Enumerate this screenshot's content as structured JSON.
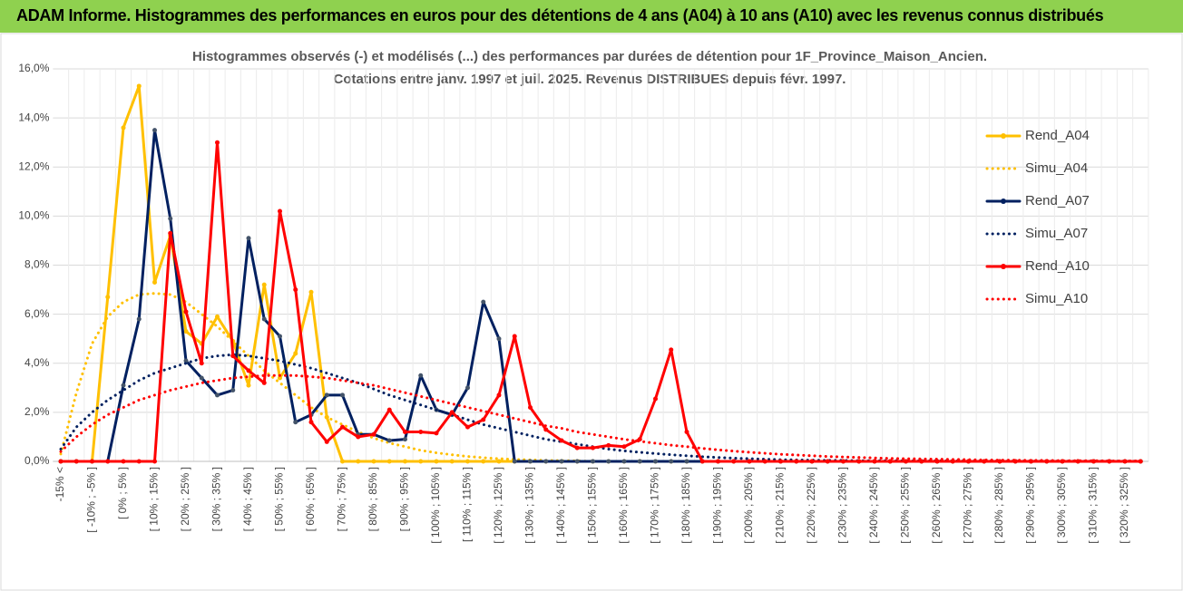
{
  "header": {
    "title": "ADAM Informe. Histogrammes des performances en euros pour des détentions de 4 ans (A04) à 10 ans (A10) avec les revenus connus distribués"
  },
  "chart_data": {
    "type": "line",
    "title": "Histogrammes observés (-) et modélisés (...) des performances par durées de détention pour 1F_Province_Maison_Ancien.",
    "subtitle": "Cotations entre janv. 1997 et juil. 2025. Revenus DISTRIBUES depuis févr. 1997.",
    "categories": [
      "-15% <",
      null,
      "[ -10% ; -5% ]",
      null,
      "[ 0% ; 5% ]",
      null,
      "[ 10% ; 15% ]",
      null,
      "[ 20% ; 25% ]",
      null,
      "[ 30% ; 35% ]",
      null,
      "[ 40% ; 45% ]",
      null,
      "[ 50% ; 55% ]",
      null,
      "[ 60% ; 65% ]",
      null,
      "[ 70% ; 75% ]",
      null,
      "[ 80% ; 85% ]",
      null,
      "[ 90% ; 95% ]",
      null,
      "[ 100% ; 105% ]",
      null,
      "[ 110% ; 115% ]",
      null,
      "[ 120% ; 125% ]",
      null,
      "[ 130% ; 135% ]",
      null,
      "[ 140% ; 145% ]",
      null,
      "[ 150% ; 155% ]",
      null,
      "[ 160% ; 165% ]",
      null,
      "[ 170% ; 175% ]",
      null,
      "[ 180% ; 185% ]",
      null,
      "[ 190% ; 195% ]",
      null,
      "[ 200% ; 205% ]",
      null,
      "[ 210% ; 215% ]",
      null,
      "[ 220% ; 225% ]",
      null,
      "[ 230% ; 235% ]",
      null,
      "[ 240% ; 245% ]",
      null,
      "[ 250% ; 255% ]",
      null,
      "[ 260% ; 265% ]",
      null,
      "[ 270% ; 275% ]",
      null,
      "[ 280% ; 285% ]",
      null,
      "[ 290% ; 295% ]",
      null,
      "[ 300% ; 305% ]",
      null,
      "[ 310% ; 315% ]",
      null,
      "[ 320% ; 325% ]",
      null
    ],
    "ylim": [
      0,
      16
    ],
    "yticks": [
      {
        "value": 0,
        "label": "0,0%"
      },
      {
        "value": 2,
        "label": "2,0%"
      },
      {
        "value": 4,
        "label": "4,0%"
      },
      {
        "value": 6,
        "label": "6,0%"
      },
      {
        "value": 8,
        "label": "8,0%"
      },
      {
        "value": 10,
        "label": "10,0%"
      },
      {
        "value": 12,
        "label": "12,0%"
      },
      {
        "value": 14,
        "label": "14,0%"
      },
      {
        "value": 16,
        "label": "16,0%"
      }
    ],
    "grid": true,
    "legend": "right",
    "series": [
      {
        "name": "Rend_A04",
        "color": "#ffc000",
        "line_style": "solid",
        "markers": true,
        "values": [
          0,
          0,
          0,
          6.7,
          13.6,
          15.3,
          7.3,
          9.2,
          5.3,
          4.8,
          5.9,
          4.9,
          3.1,
          7.2,
          3.4,
          4.4,
          6.9,
          1.8,
          0,
          0,
          0,
          0,
          0,
          0,
          0,
          0,
          0,
          0,
          0,
          0,
          0,
          0,
          0,
          0,
          0,
          0,
          0,
          0,
          0,
          0,
          0,
          0,
          0,
          0,
          0,
          0,
          0,
          0,
          0,
          0,
          0,
          0,
          0,
          0,
          0,
          0,
          0,
          0,
          0,
          0,
          0,
          0,
          0,
          0,
          0,
          0,
          0,
          0,
          0,
          0
        ]
      },
      {
        "name": "Simu_A04",
        "color": "#ffc000",
        "line_style": "dotted",
        "markers": false,
        "values": [
          0.3,
          2.8,
          4.8,
          5.9,
          6.5,
          6.8,
          6.85,
          6.8,
          6.5,
          6.0,
          5.5,
          4.9,
          4.3,
          3.7,
          3.2,
          2.7,
          2.2,
          1.8,
          1.5,
          1.2,
          0.95,
          0.75,
          0.6,
          0.45,
          0.35,
          0.27,
          0.2,
          0.15,
          0.11,
          0.08,
          0.06,
          0.04,
          0.03,
          0.02,
          0,
          0,
          0,
          0,
          0,
          0,
          0,
          0,
          0,
          0,
          0,
          0,
          0,
          0,
          0,
          0,
          0,
          0,
          0,
          0,
          0,
          0,
          0,
          0,
          0,
          0,
          0,
          0,
          0,
          0,
          0,
          0,
          0,
          0,
          0,
          0
        ]
      },
      {
        "name": "Rend_A07",
        "color": "#002060",
        "line_style": "solid",
        "markers": true,
        "values": [
          0,
          0,
          0,
          0,
          3.1,
          5.8,
          13.5,
          9.9,
          4.1,
          3.4,
          2.7,
          2.9,
          9.1,
          5.8,
          5.1,
          1.6,
          1.9,
          2.7,
          2.7,
          1.1,
          1.1,
          0.85,
          0.9,
          3.5,
          2.1,
          1.9,
          3.0,
          6.5,
          5.0,
          0,
          0,
          0,
          0,
          0,
          0,
          0,
          0,
          0,
          0,
          0,
          0,
          0,
          0,
          0,
          0,
          0,
          0,
          0,
          0,
          0,
          0,
          0,
          0,
          0,
          0,
          0,
          0,
          0,
          0,
          0,
          0,
          0,
          0,
          0,
          0,
          0,
          0,
          0,
          0,
          0
        ]
      },
      {
        "name": "Simu_A07",
        "color": "#002060",
        "line_style": "dotted",
        "markers": false,
        "values": [
          0.5,
          1.4,
          2.0,
          2.5,
          2.9,
          3.3,
          3.6,
          3.8,
          4.0,
          4.2,
          4.3,
          4.35,
          4.3,
          4.2,
          4.1,
          3.95,
          3.8,
          3.6,
          3.4,
          3.2,
          2.95,
          2.7,
          2.5,
          2.3,
          2.1,
          1.9,
          1.7,
          1.5,
          1.35,
          1.2,
          1.05,
          0.9,
          0.8,
          0.7,
          0.6,
          0.5,
          0.43,
          0.37,
          0.32,
          0.27,
          0.23,
          0.19,
          0.16,
          0.13,
          0.11,
          0.09,
          0.07,
          0.06,
          0.05,
          0.04,
          0.04,
          0.03,
          0.03,
          0.03,
          0.02,
          0.02,
          0.02,
          0.02,
          0.01,
          0.01,
          0.01,
          0.01,
          0.01,
          0.01,
          0.01,
          0.01,
          0.01,
          0.01,
          0.01,
          0.01
        ]
      },
      {
        "name": "Rend_A10",
        "color": "#ff0000",
        "line_style": "solid",
        "markers": true,
        "values": [
          0,
          0,
          0,
          0,
          0,
          0,
          0,
          9.3,
          6.1,
          4.0,
          13.0,
          4.3,
          3.7,
          3.2,
          10.2,
          7.0,
          1.6,
          0.8,
          1.4,
          1.0,
          1.1,
          2.1,
          1.2,
          1.2,
          1.15,
          2.0,
          1.4,
          1.7,
          2.7,
          5.1,
          2.2,
          1.3,
          0.85,
          0.55,
          0.55,
          0.65,
          0.6,
          0.9,
          2.55,
          4.55,
          1.2,
          0,
          0,
          0,
          0,
          0,
          0,
          0,
          0,
          0,
          0,
          0,
          0,
          0,
          0,
          0,
          0,
          0,
          0,
          0,
          0,
          0,
          0,
          0,
          0,
          0,
          0,
          0,
          0,
          0
        ]
      },
      {
        "name": "Simu_A10",
        "color": "#ff0000",
        "line_style": "dotted",
        "markers": false,
        "values": [
          0.4,
          1.0,
          1.5,
          1.9,
          2.2,
          2.5,
          2.7,
          2.9,
          3.05,
          3.2,
          3.3,
          3.4,
          3.45,
          3.5,
          3.5,
          3.5,
          3.45,
          3.4,
          3.3,
          3.2,
          3.1,
          2.95,
          2.8,
          2.65,
          2.5,
          2.35,
          2.2,
          2.05,
          1.9,
          1.75,
          1.6,
          1.45,
          1.35,
          1.2,
          1.1,
          1.0,
          0.9,
          0.82,
          0.74,
          0.66,
          0.6,
          0.53,
          0.47,
          0.42,
          0.37,
          0.33,
          0.29,
          0.26,
          0.23,
          0.2,
          0.18,
          0.16,
          0.14,
          0.12,
          0.11,
          0.1,
          0.09,
          0.08,
          0.07,
          0.06,
          0.05,
          0.05,
          0.04,
          0.04,
          0.03,
          0.03,
          0.03,
          0.02,
          0.02,
          0.02
        ]
      }
    ]
  }
}
